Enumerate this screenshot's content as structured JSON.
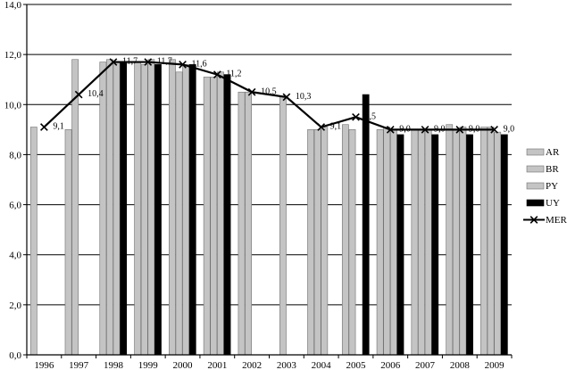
{
  "chart_data": {
    "type": "bar",
    "categories": [
      "1996",
      "1997",
      "1998",
      "1999",
      "2000",
      "2001",
      "2002",
      "2003",
      "2004",
      "2005",
      "2006",
      "2007",
      "2008",
      "2009"
    ],
    "ylim": [
      0,
      14
    ],
    "yticks": [
      "0,0",
      "2,0",
      "4,0",
      "6,0",
      "8,0",
      "10,0",
      "12,0",
      "14,0"
    ],
    "grid": true,
    "legend_position": "right",
    "series": [
      {
        "name": "AR",
        "kind": "bar",
        "color": "#c4c4c4",
        "values": [
          9.1,
          9.0,
          11.7,
          11.7,
          11.8,
          11.1,
          10.5,
          null,
          9.0,
          9.2,
          9.0,
          9.0,
          9.2,
          9.1
        ]
      },
      {
        "name": "BR",
        "kind": "bar",
        "color": "#c4c4c4",
        "values": [
          null,
          11.8,
          11.8,
          11.6,
          11.3,
          11.1,
          10.5,
          10.3,
          9.0,
          9.0,
          9.1,
          9.0,
          9.0,
          9.1
        ]
      },
      {
        "name": "PY",
        "kind": "bar",
        "color": "#c4c4c4",
        "values": [
          null,
          null,
          11.7,
          11.8,
          11.6,
          11.3,
          null,
          null,
          9.1,
          null,
          9.0,
          9.0,
          9.1,
          8.9
        ]
      },
      {
        "name": "UY",
        "kind": "bar",
        "color": "#000000",
        "values": [
          null,
          null,
          11.7,
          11.6,
          11.6,
          11.2,
          null,
          null,
          null,
          10.4,
          8.8,
          8.8,
          8.8,
          8.8
        ]
      },
      {
        "name": "MER",
        "kind": "line",
        "color": "#000000",
        "values": [
          9.1,
          10.4,
          11.7,
          11.7,
          11.6,
          11.2,
          10.5,
          10.3,
          9.1,
          9.5,
          9.0,
          9.0,
          9.0,
          9.0
        ],
        "labels": [
          "9,1",
          "10,4",
          "11,7",
          "11,7",
          "11,6",
          "11,2",
          "10,5",
          "10,3",
          "9,1",
          "9,5",
          "9,0",
          "9,0",
          "9,0",
          "9,0"
        ]
      }
    ]
  }
}
